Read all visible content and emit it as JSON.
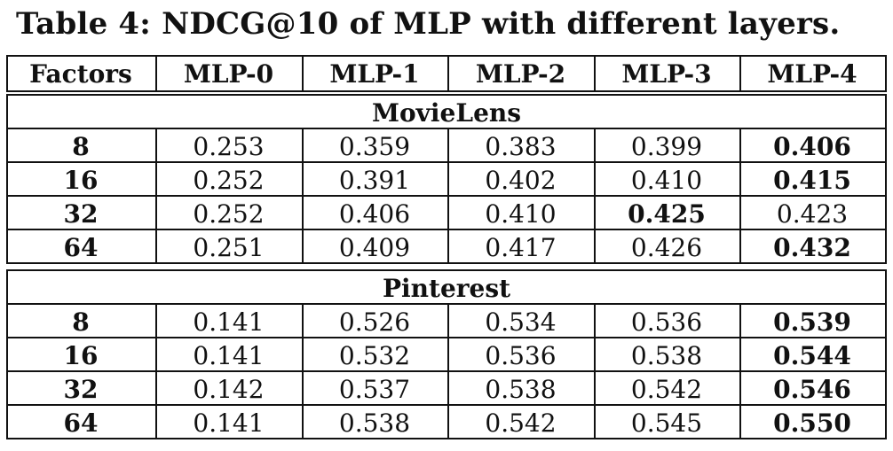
{
  "caption": "Table 4: NDCG@10 of MLP with different layers.",
  "table": {
    "headers": [
      "Factors",
      "MLP-0",
      "MLP-1",
      "MLP-2",
      "MLP-3",
      "MLP-4"
    ],
    "sections": [
      {
        "title": "MovieLens",
        "rows": [
          {
            "factors": "8",
            "values": [
              "0.253",
              "0.359",
              "0.383",
              "0.399",
              "0.406"
            ],
            "best_index": 4
          },
          {
            "factors": "16",
            "values": [
              "0.252",
              "0.391",
              "0.402",
              "0.410",
              "0.415"
            ],
            "best_index": 4
          },
          {
            "factors": "32",
            "values": [
              "0.252",
              "0.406",
              "0.410",
              "0.425",
              "0.423"
            ],
            "best_index": 3
          },
          {
            "factors": "64",
            "values": [
              "0.251",
              "0.409",
              "0.417",
              "0.426",
              "0.432"
            ],
            "best_index": 4
          }
        ]
      },
      {
        "title": "Pinterest",
        "rows": [
          {
            "factors": "8",
            "values": [
              "0.141",
              "0.526",
              "0.534",
              "0.536",
              "0.539"
            ],
            "best_index": 4
          },
          {
            "factors": "16",
            "values": [
              "0.141",
              "0.532",
              "0.536",
              "0.538",
              "0.544"
            ],
            "best_index": 4
          },
          {
            "factors": "32",
            "values": [
              "0.142",
              "0.537",
              "0.538",
              "0.542",
              "0.546"
            ],
            "best_index": 4
          },
          {
            "factors": "64",
            "values": [
              "0.141",
              "0.538",
              "0.542",
              "0.545",
              "0.550"
            ],
            "best_index": 4
          }
        ]
      }
    ]
  }
}
